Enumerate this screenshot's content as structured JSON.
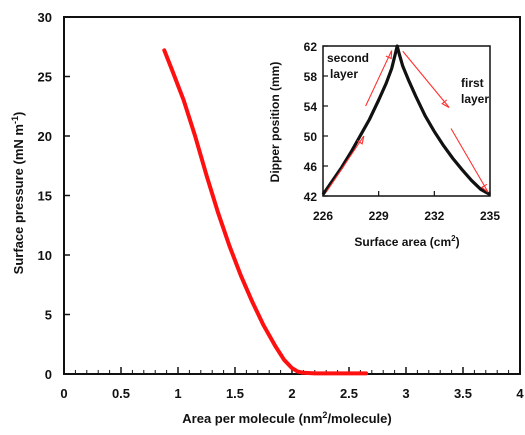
{
  "chart_data": [
    {
      "type": "line",
      "xlabel_parts": [
        "Area per molecule (nm",
        "2",
        "/molecule)"
      ],
      "ylabel_parts": [
        "Surface pressure (mN m",
        "-1",
        ")"
      ],
      "xlim": [
        0,
        4
      ],
      "ylim": [
        0,
        30
      ],
      "xticks": [
        0,
        0.5,
        1,
        1.5,
        2,
        2.5,
        3,
        3.5,
        4
      ],
      "xtick_labels": [
        "0",
        "0.5",
        "1",
        "1.5",
        "2",
        "2.5",
        "3",
        "3.5",
        "4"
      ],
      "yticks": [
        0,
        5,
        10,
        15,
        20,
        25,
        30
      ],
      "ytick_labels": [
        "0",
        "5",
        "10",
        "15",
        "20",
        "25",
        "30"
      ],
      "grid": false,
      "series": [
        {
          "color": "#ff1010",
          "x": [
            0.88,
            0.95,
            1.05,
            1.15,
            1.25,
            1.35,
            1.45,
            1.55,
            1.65,
            1.75,
            1.85,
            1.93,
            2.0,
            2.05,
            2.1,
            2.2,
            2.35,
            2.5,
            2.65
          ],
          "y": [
            27.2,
            25.5,
            23.0,
            20.0,
            16.7,
            13.6,
            10.8,
            8.3,
            6.1,
            4.1,
            2.4,
            1.2,
            0.5,
            0.2,
            0.1,
            0.05,
            0.05,
            0.05,
            0.05
          ]
        }
      ]
    },
    {
      "type": "line",
      "xlabel_parts": [
        "Surface area (cm",
        "2",
        ")"
      ],
      "ylabel": "Dipper position  (mm)",
      "xlim": [
        226,
        235
      ],
      "ylim": [
        42,
        62
      ],
      "xticks": [
        226,
        229,
        232,
        235
      ],
      "xtick_labels": [
        "226",
        "229",
        "232",
        "235"
      ],
      "yticks": [
        42,
        46,
        50,
        54,
        58,
        62
      ],
      "ytick_labels": [
        "42",
        "46",
        "50",
        "54",
        "58",
        "62"
      ],
      "series": [
        {
          "color": "#111111",
          "x": [
            226.0,
            226.5,
            227.0,
            227.5,
            228.0,
            228.5,
            229.0,
            229.4,
            229.7,
            229.9,
            230.0,
            230.1,
            230.3,
            230.6,
            231.0,
            231.5,
            232.0,
            232.5,
            233.0,
            233.5,
            234.0,
            234.5,
            235.0
          ],
          "y": [
            42.2,
            44.0,
            45.8,
            47.8,
            50.0,
            52.2,
            54.8,
            57.0,
            59.0,
            61.0,
            62.0,
            61.0,
            59.3,
            57.5,
            55.3,
            52.7,
            50.6,
            48.7,
            47.0,
            45.5,
            44.1,
            42.9,
            42.2
          ]
        }
      ],
      "annotations": [
        {
          "id": "second",
          "lines": [
            "second",
            "layer"
          ]
        },
        {
          "id": "first",
          "lines": [
            "first",
            "layer"
          ]
        }
      ],
      "arrow_color": "#ff3030"
    }
  ]
}
